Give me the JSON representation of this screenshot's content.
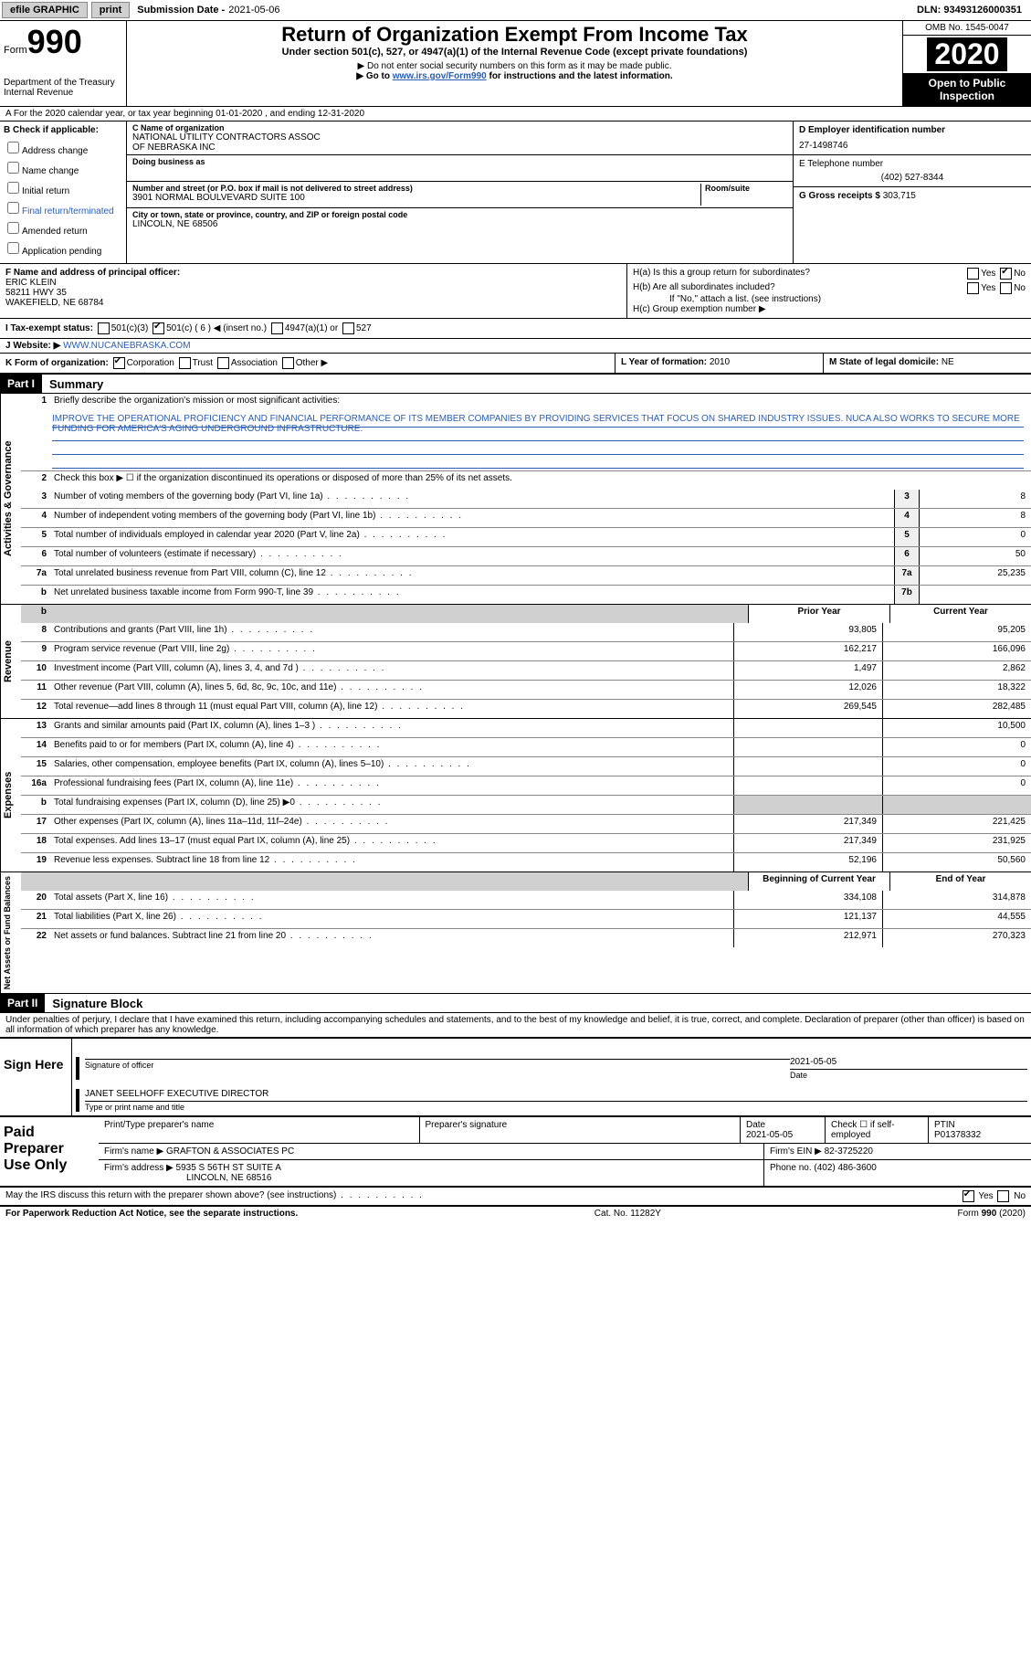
{
  "topbar": {
    "efile": "efile GRAPHIC",
    "print": "print",
    "submission_label": "Submission Date - ",
    "submission_date": "2021-05-06",
    "dln_label": "DLN: ",
    "dln": "93493126000351"
  },
  "header": {
    "form_prefix": "Form",
    "form_num": "990",
    "dept": "Department of the Treasury",
    "irs": "Internal Revenue",
    "title": "Return of Organization Exempt From Income Tax",
    "subtitle": "Under section 501(c), 527, or 4947(a)(1) of the Internal Revenue Code (except private foundations)",
    "note1": "▶ Do not enter social security numbers on this form as it may be made public.",
    "note2_pre": "▶ Go to ",
    "note2_link": "www.irs.gov/Form990",
    "note2_post": " for instructions and the latest information.",
    "omb": "OMB No. 1545-0047",
    "year": "2020",
    "open_public1": "Open to Public",
    "open_public2": "Inspection"
  },
  "a_row": "A For the 2020 calendar year, or tax year beginning 01-01-2020   , and ending 12-31-2020",
  "b": {
    "label": "B Check if applicable:",
    "opts": [
      "Address change",
      "Name change",
      "Initial return",
      "Final return/terminated",
      "Amended return",
      "Application pending"
    ]
  },
  "c": {
    "name_label": "C Name of organization",
    "name1": "NATIONAL UTILITY CONTRACTORS ASSOC",
    "name2": "OF NEBRASKA INC",
    "dba_label": "Doing business as",
    "street_label": "Number and street (or P.O. box if mail is not delivered to street address)",
    "room_label": "Room/suite",
    "street": "3901 NORMAL BOULVEVARD SUITE 100",
    "city_label": "City or town, state or province, country, and ZIP or foreign postal code",
    "city": "LINCOLN, NE  68506"
  },
  "d": {
    "label": "D Employer identification number",
    "val": "27-1498746"
  },
  "e": {
    "label": "E Telephone number",
    "val": "(402) 527-8344"
  },
  "g": {
    "label": "G Gross receipts $ ",
    "val": "303,715"
  },
  "f": {
    "label": "F  Name and address of principal officer:",
    "name": "ERIC KLEIN",
    "addr1": "58211 HWY 35",
    "addr2": "WAKEFIELD, NE  68784"
  },
  "h": {
    "a": "H(a)  Is this a group return for subordinates?",
    "b": "H(b)  Are all subordinates included?",
    "b_note": "If \"No,\" attach a list. (see instructions)",
    "c": "H(c)  Group exemption number ▶",
    "yes": "Yes",
    "no": "No"
  },
  "i": {
    "label": "I   Tax-exempt status:",
    "o1": "501(c)(3)",
    "o2": "501(c) ( 6 ) ◀ (insert no.)",
    "o3": "4947(a)(1) or",
    "o4": "527"
  },
  "j": {
    "label": "J   Website: ▶  ",
    "val": "WWW.NUCANEBRASKA.COM"
  },
  "k": {
    "label": "K Form of organization:",
    "o1": "Corporation",
    "o2": "Trust",
    "o3": "Association",
    "o4": "Other ▶"
  },
  "l": {
    "label": "L Year of formation: ",
    "val": "2010"
  },
  "m": {
    "label": "M State of legal domicile: ",
    "val": "NE"
  },
  "part1": {
    "hdr": "Part I",
    "title": "Summary",
    "line1": "Briefly describe the organization's mission or most significant activities:",
    "mission": "IMPROVE THE OPERATIONAL PROFICIENCY AND FINANCIAL PERFORMANCE OF ITS MEMBER COMPANIES BY PROVIDING SERVICES THAT FOCUS ON SHARED INDUSTRY ISSUES. NUCA ALSO WORKS TO SECURE MORE FUNDING FOR AMERICA'S AGING UNDERGROUND INFRASTRUCTURE.",
    "line2": "Check this box ▶ ☐  if the organization discontinued its operations or disposed of more than 25% of its net assets.",
    "gov": [
      {
        "n": "3",
        "t": "Number of voting members of the governing body (Part VI, line 1a)",
        "b": "3",
        "v": "8"
      },
      {
        "n": "4",
        "t": "Number of independent voting members of the governing body (Part VI, line 1b)",
        "b": "4",
        "v": "8"
      },
      {
        "n": "5",
        "t": "Total number of individuals employed in calendar year 2020 (Part V, line 2a)",
        "b": "5",
        "v": "0"
      },
      {
        "n": "6",
        "t": "Total number of volunteers (estimate if necessary)",
        "b": "6",
        "v": "50"
      },
      {
        "n": "7a",
        "t": "Total unrelated business revenue from Part VIII, column (C), line 12",
        "b": "7a",
        "v": "25,235"
      },
      {
        "n": "b",
        "t": "Net unrelated business taxable income from Form 990-T, line 39",
        "b": "7b",
        "v": ""
      }
    ],
    "col_prior": "Prior Year",
    "col_current": "Current Year",
    "revenue": [
      {
        "n": "8",
        "t": "Contributions and grants (Part VIII, line 1h)",
        "p": "93,805",
        "c": "95,205"
      },
      {
        "n": "9",
        "t": "Program service revenue (Part VIII, line 2g)",
        "p": "162,217",
        "c": "166,096"
      },
      {
        "n": "10",
        "t": "Investment income (Part VIII, column (A), lines 3, 4, and 7d )",
        "p": "1,497",
        "c": "2,862"
      },
      {
        "n": "11",
        "t": "Other revenue (Part VIII, column (A), lines 5, 6d, 8c, 9c, 10c, and 11e)",
        "p": "12,026",
        "c": "18,322"
      },
      {
        "n": "12",
        "t": "Total revenue—add lines 8 through 11 (must equal Part VIII, column (A), line 12)",
        "p": "269,545",
        "c": "282,485"
      }
    ],
    "expenses": [
      {
        "n": "13",
        "t": "Grants and similar amounts paid (Part IX, column (A), lines 1–3 )",
        "p": "",
        "c": "10,500"
      },
      {
        "n": "14",
        "t": "Benefits paid to or for members (Part IX, column (A), line 4)",
        "p": "",
        "c": "0"
      },
      {
        "n": "15",
        "t": "Salaries, other compensation, employee benefits (Part IX, column (A), lines 5–10)",
        "p": "",
        "c": "0"
      },
      {
        "n": "16a",
        "t": "Professional fundraising fees (Part IX, column (A), line 11e)",
        "p": "",
        "c": "0"
      },
      {
        "n": "b",
        "t": "Total fundraising expenses (Part IX, column (D), line 25) ▶0",
        "p": "grey",
        "c": "grey"
      },
      {
        "n": "17",
        "t": "Other expenses (Part IX, column (A), lines 11a–11d, 11f–24e)",
        "p": "217,349",
        "c": "221,425"
      },
      {
        "n": "18",
        "t": "Total expenses. Add lines 13–17 (must equal Part IX, column (A), line 25)",
        "p": "217,349",
        "c": "231,925"
      },
      {
        "n": "19",
        "t": "Revenue less expenses. Subtract line 18 from line 12",
        "p": "52,196",
        "c": "50,560"
      }
    ],
    "col_beg": "Beginning of Current Year",
    "col_end": "End of Year",
    "net": [
      {
        "n": "20",
        "t": "Total assets (Part X, line 16)",
        "p": "334,108",
        "c": "314,878"
      },
      {
        "n": "21",
        "t": "Total liabilities (Part X, line 26)",
        "p": "121,137",
        "c": "44,555"
      },
      {
        "n": "22",
        "t": "Net assets or fund balances. Subtract line 21 from line 20",
        "p": "212,971",
        "c": "270,323"
      }
    ],
    "side_gov": "Activities & Governance",
    "side_rev": "Revenue",
    "side_exp": "Expenses",
    "side_net": "Net Assets or Fund Balances"
  },
  "part2": {
    "hdr": "Part II",
    "title": "Signature Block",
    "penalty": "Under penalties of perjury, I declare that I have examined this return, including accompanying schedules and statements, and to the best of my knowledge and belief, it is true, correct, and complete. Declaration of preparer (other than officer) is based on all information of which preparer has any knowledge."
  },
  "sign": {
    "label": "Sign Here",
    "sig_label": "Signature of officer",
    "date_label": "Date",
    "date": "2021-05-05",
    "name": "JANET SEELHOFF  EXECUTIVE DIRECTOR",
    "name_label": "Type or print name and title"
  },
  "preparer": {
    "label1": "Paid",
    "label2": "Preparer",
    "label3": "Use Only",
    "h1": "Print/Type preparer's name",
    "h2": "Preparer's signature",
    "h3": "Date",
    "date": "2021-05-05",
    "h4": "Check ☐ if self-employed",
    "h5": "PTIN",
    "ptin": "P01378332",
    "firm_name_label": "Firm's name    ▶ ",
    "firm_name": "GRAFTON & ASSOCIATES PC",
    "firm_ein_label": "Firm's EIN ▶ ",
    "firm_ein": "82-3725220",
    "firm_addr_label": "Firm's address ▶ ",
    "firm_addr1": "5935 S 56TH ST SUITE A",
    "firm_addr2": "LINCOLN, NE  68516",
    "phone_label": "Phone no. ",
    "phone": "(402) 486-3600"
  },
  "discuss": "May the IRS discuss this return with the preparer shown above? (see instructions)",
  "footer": {
    "left": "For Paperwork Reduction Act Notice, see the separate instructions.",
    "mid": "Cat. No. 11282Y",
    "right": "Form 990 (2020)"
  }
}
